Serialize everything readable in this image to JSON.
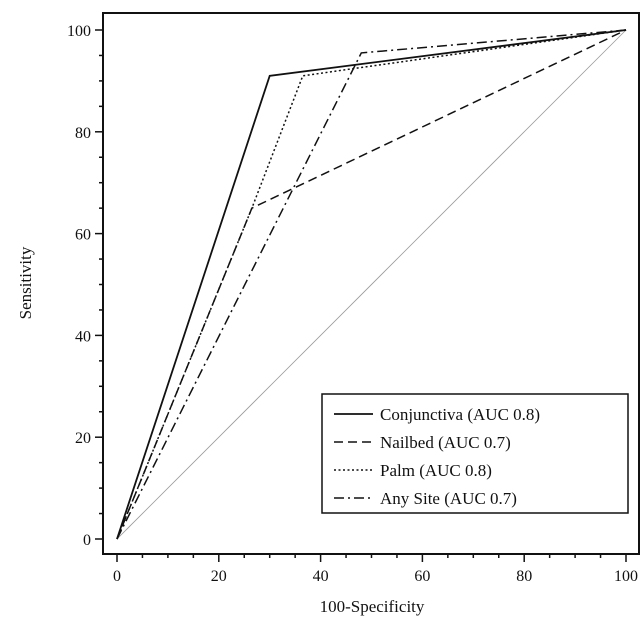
{
  "chart_data": {
    "type": "line",
    "title": "",
    "xlabel": "100-Specificity",
    "ylabel": "Sensitivity",
    "xlim": [
      0,
      100
    ],
    "ylim": [
      0,
      100
    ],
    "x_ticks": [
      0,
      20,
      40,
      60,
      80,
      100
    ],
    "y_ticks": [
      0,
      20,
      40,
      60,
      80,
      100
    ],
    "x_tick_labels": [
      "0",
      "20",
      "40",
      "60",
      "80",
      "100"
    ],
    "y_tick_labels": [
      "0",
      "20",
      "40",
      "60",
      "80",
      "100"
    ],
    "grid": false,
    "legend_position": "bottom-right",
    "reference_line": {
      "x": [
        0,
        100
      ],
      "y": [
        0,
        100
      ],
      "style": "solid",
      "color": "#9a9a9a"
    },
    "series": [
      {
        "name": "Conjunctiva (AUC 0.8)",
        "style": "solid",
        "color": "#111111",
        "points": [
          [
            0,
            0
          ],
          [
            30,
            91
          ],
          [
            100,
            100
          ]
        ]
      },
      {
        "name": "Nailbed (AUC 0.7)",
        "style": "dashed",
        "color": "#111111",
        "points": [
          [
            0,
            0
          ],
          [
            26.5,
            65
          ],
          [
            100,
            100
          ]
        ]
      },
      {
        "name": "Palm (AUC 0.8)",
        "style": "dotted",
        "color": "#111111",
        "points": [
          [
            0,
            0
          ],
          [
            26.5,
            65
          ],
          [
            36.5,
            91
          ],
          [
            100,
            100
          ]
        ]
      },
      {
        "name": "Any Site (AUC 0.7)",
        "style": "dashdot",
        "color": "#111111",
        "points": [
          [
            0,
            0
          ],
          [
            48,
            95.5
          ],
          [
            100,
            100
          ]
        ]
      }
    ]
  }
}
